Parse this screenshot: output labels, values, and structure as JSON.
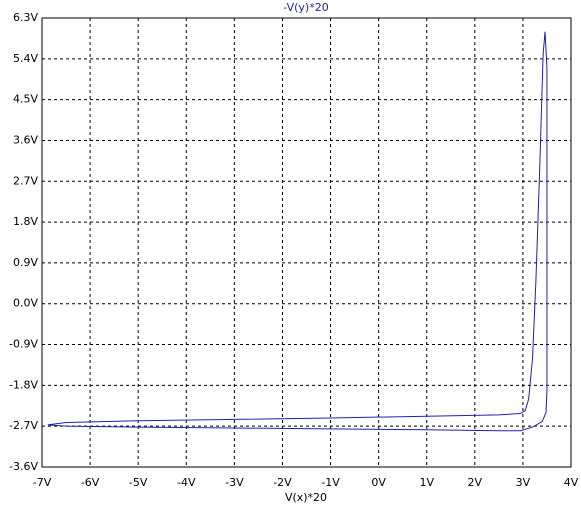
{
  "chart_data": {
    "type": "line",
    "x_label": "V(x)*20",
    "x": [
      -6.88,
      -6.5,
      -5,
      -3,
      -1,
      1,
      2.5,
      2.95,
      3.05,
      3.12,
      3.2,
      3.27,
      3.35,
      3.42,
      3.46,
      3.5,
      3.5,
      3.48,
      3.4,
      3.2,
      2.95,
      2.5,
      1,
      -1,
      -3,
      -5,
      -6.5,
      -6.88
    ],
    "series": [
      {
        "name": "-V(y)*20",
        "color": "#2020b0",
        "values": [
          -2.67,
          -2.62,
          -2.58,
          -2.55,
          -2.52,
          -2.48,
          -2.45,
          -2.42,
          -2.35,
          -2.1,
          -1.2,
          0.5,
          3.0,
          5.5,
          6.0,
          5.2,
          -1.9,
          -2.4,
          -2.6,
          -2.72,
          -2.8,
          -2.8,
          -2.78,
          -2.76,
          -2.74,
          -2.72,
          -2.7,
          -2.67
        ]
      }
    ],
    "xlim": [
      -7,
      4
    ],
    "xticks": [
      {
        "value": -7,
        "label": "-7V"
      },
      {
        "value": -6,
        "label": "-6V"
      },
      {
        "value": -5,
        "label": "-5V"
      },
      {
        "value": -4,
        "label": "-4V"
      },
      {
        "value": -3,
        "label": "-3V"
      },
      {
        "value": -2,
        "label": "-2V"
      },
      {
        "value": -1,
        "label": "-1V"
      },
      {
        "value": 0,
        "label": "0V"
      },
      {
        "value": 1,
        "label": "1V"
      },
      {
        "value": 2,
        "label": "2V"
      },
      {
        "value": 3,
        "label": "3V"
      },
      {
        "value": 4,
        "label": "4V"
      }
    ],
    "ylim": [
      -3.6,
      6.3
    ],
    "yticks": [
      {
        "value": -3.6,
        "label": "-3.6V"
      },
      {
        "value": -2.7,
        "label": "-2.7V"
      },
      {
        "value": -1.8,
        "label": "-1.8V"
      },
      {
        "value": -0.9,
        "label": "-0.9V"
      },
      {
        "value": 0,
        "label": "0.0V"
      },
      {
        "value": 0.9,
        "label": "0.9V"
      },
      {
        "value": 1.8,
        "label": "1.8V"
      },
      {
        "value": 2.7,
        "label": "2.7V"
      },
      {
        "value": 3.6,
        "label": "3.6V"
      },
      {
        "value": 4.5,
        "label": "4.5V"
      },
      {
        "value": 5.4,
        "label": "5.4V"
      },
      {
        "value": 6.3,
        "label": "6.3V"
      }
    ],
    "grid": true
  }
}
